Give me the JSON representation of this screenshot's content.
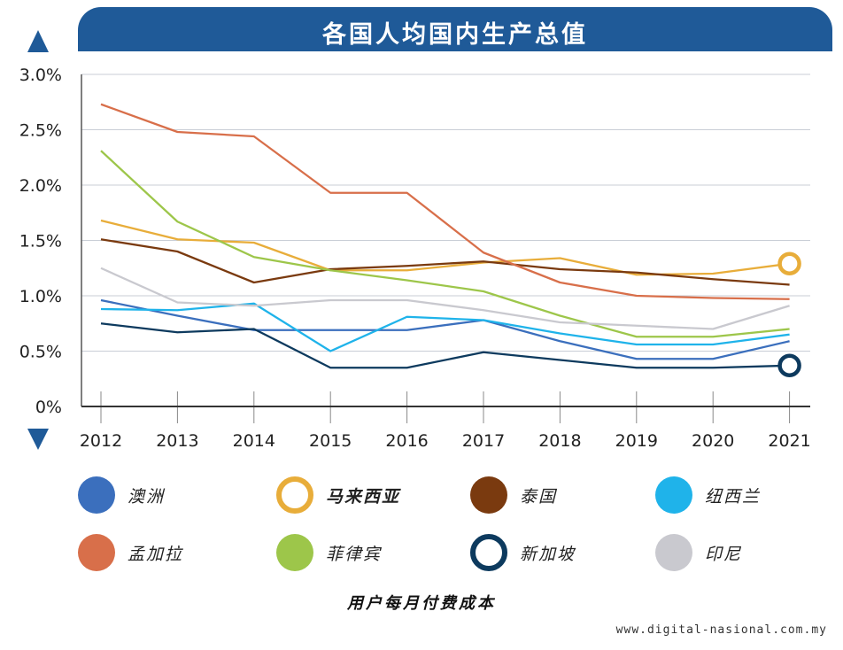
{
  "chart_data": {
    "type": "line",
    "title": "各国人均国内生产总值",
    "xlabel": "用户每月付费成本",
    "ylabel": "",
    "x": [
      "2012",
      "2013",
      "2014",
      "2015",
      "2016",
      "2017",
      "2018",
      "2019",
      "2020",
      "2021"
    ],
    "ylim": [
      0,
      3.0
    ],
    "yticks": [
      "0%",
      "0.5%",
      "1.0%",
      "1.5%",
      "2.0%",
      "2.5%",
      "3.0%"
    ],
    "grid": true,
    "legend_position": "bottom",
    "series": [
      {
        "name": "澳洲",
        "color": "#3b6fbd",
        "values": [
          0.96,
          0.82,
          0.69,
          0.69,
          0.69,
          0.78,
          0.59,
          0.43,
          0.43,
          0.59
        ]
      },
      {
        "name": "马来西亚",
        "color": "#e8ad3a",
        "highlight": true,
        "values": [
          1.68,
          1.51,
          1.48,
          1.23,
          1.23,
          1.3,
          1.34,
          1.19,
          1.2,
          1.29
        ]
      },
      {
        "name": "泰国",
        "color": "#7a3a0f",
        "values": [
          1.51,
          1.4,
          1.12,
          1.24,
          1.27,
          1.31,
          1.24,
          1.21,
          1.15,
          1.1
        ]
      },
      {
        "name": "纽西兰",
        "color": "#1fb3ea",
        "values": [
          0.88,
          0.87,
          0.93,
          0.5,
          0.81,
          0.78,
          0.66,
          0.56,
          0.56,
          0.65
        ]
      },
      {
        "name": "孟加拉",
        "color": "#d86f4a",
        "values": [
          2.73,
          2.48,
          2.44,
          1.93,
          1.93,
          1.39,
          1.12,
          1.0,
          0.98,
          0.97
        ]
      },
      {
        "name": "菲律宾",
        "color": "#9dc64a",
        "values": [
          2.31,
          1.67,
          1.35,
          1.23,
          1.14,
          1.04,
          0.82,
          0.63,
          0.63,
          0.7
        ]
      },
      {
        "name": "新加坡",
        "color": "#0d3a5e",
        "highlight": true,
        "values": [
          0.75,
          0.67,
          0.7,
          0.35,
          0.35,
          0.49,
          0.42,
          0.35,
          0.35,
          0.37
        ]
      },
      {
        "name": "印尼",
        "color": "#c9c9cf",
        "values": [
          1.25,
          0.94,
          0.91,
          0.96,
          0.96,
          0.87,
          0.76,
          0.73,
          0.7,
          0.91
        ]
      }
    ]
  },
  "footer": {
    "source": "www.digital-nasional.com.my"
  }
}
